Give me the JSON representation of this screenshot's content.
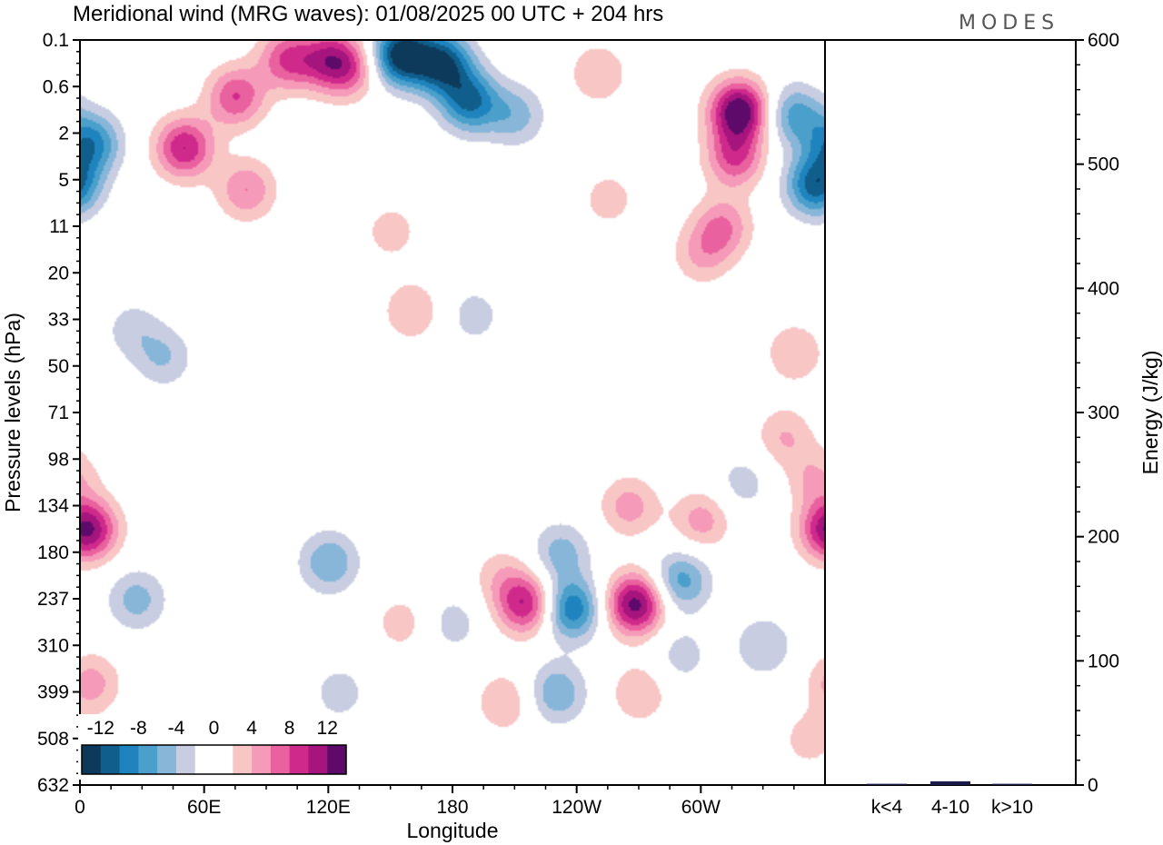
{
  "header": {
    "title": "Meridional wind (MRG waves):  01/08/2025  00 UTC  + 204 hrs",
    "brand": "MODES"
  },
  "chart_data": {
    "type": "heatmap",
    "title": "Meridional wind (MRG waves):  01/08/2025  00 UTC  + 204 hrs",
    "xlabel": "Longitude",
    "ylabel": "Pressure levels (hPa)",
    "x_ticks": [
      "0",
      "60E",
      "120E",
      "180",
      "120W",
      "60W"
    ],
    "x_tick_longitudes": [
      0,
      60,
      120,
      180,
      240,
      300
    ],
    "xlim": [
      0,
      360
    ],
    "y_ticks": [
      "0.1",
      "0.6",
      "2",
      "5",
      "11",
      "20",
      "33",
      "50",
      "71",
      "98",
      "134",
      "180",
      "237",
      "310",
      "399",
      "508",
      "632"
    ],
    "colorbar": {
      "labels": [
        "-12",
        "-8",
        "-4",
        "0",
        "4",
        "8",
        "12"
      ],
      "label_values": [
        -12,
        -8,
        -4,
        0,
        4,
        8,
        12
      ],
      "levels": [
        -14,
        -12,
        -10,
        -8,
        -6,
        -4,
        -2,
        0,
        2,
        4,
        6,
        8,
        10,
        12,
        14
      ],
      "colors": [
        "#0d3a5a",
        "#0f5e8c",
        "#1f84bd",
        "#4a9fcb",
        "#87b6d8",
        "#c8cde2",
        "#ffffff",
        "#ffffff",
        "#f9c6c6",
        "#f59ab8",
        "#e9619e",
        "#cf2a8b",
        "#a6157d",
        "#5e0a6b"
      ]
    },
    "blobs": [
      {
        "lon": 155,
        "level": 0.3,
        "value": -14
      },
      {
        "lon": 175,
        "level": 0.5,
        "value": -12
      },
      {
        "lon": 188,
        "level": 1.3,
        "value": -10
      },
      {
        "lon": 210,
        "level": 1.6,
        "value": -5
      },
      {
        "lon": 100,
        "level": 0.4,
        "value": 8
      },
      {
        "lon": 120,
        "level": 0.4,
        "value": 8
      },
      {
        "lon": 130,
        "level": 0.6,
        "value": 6
      },
      {
        "lon": 75,
        "level": 1.2,
        "value": 8
      },
      {
        "lon": 50,
        "level": 2.3,
        "value": 10
      },
      {
        "lon": 80,
        "level": 3.2,
        "value": 6
      },
      {
        "lon": 250,
        "level": 0.7,
        "value": 4
      },
      {
        "lon": 255,
        "level": 3.4,
        "value": 3
      },
      {
        "lon": 318,
        "level": 1.5,
        "value": 14
      },
      {
        "lon": 316,
        "level": 2.5,
        "value": 8
      },
      {
        "lon": 310,
        "level": 4.0,
        "value": 6
      },
      {
        "lon": 300,
        "level": 4.6,
        "value": 4
      },
      {
        "lon": 345,
        "level": 1.6,
        "value": -7
      },
      {
        "lon": 355,
        "level": 3.1,
        "value": -11
      },
      {
        "lon": 5,
        "level": 2.2,
        "value": -9
      },
      {
        "lon": 150,
        "level": 4.1,
        "value": 3
      },
      {
        "lon": 160,
        "level": 5.8,
        "value": 4
      },
      {
        "lon": 190,
        "level": 5.9,
        "value": -3
      },
      {
        "lon": 40,
        "level": 6.8,
        "value": -4
      },
      {
        "lon": 25,
        "level": 6.2,
        "value": -3
      },
      {
        "lon": 345,
        "level": 6.7,
        "value": 4
      },
      {
        "lon": 340,
        "level": 8.5,
        "value": 4
      },
      {
        "lon": 5,
        "level": 10.5,
        "value": 7
      },
      {
        "lon": 5,
        "level": 13.8,
        "value": 5
      },
      {
        "lon": 27,
        "level": 12.0,
        "value": -5
      },
      {
        "lon": 360,
        "level": 10.5,
        "value": 6
      },
      {
        "lon": 120,
        "level": 11.2,
        "value": -6
      },
      {
        "lon": 125,
        "level": 14.0,
        "value": -3
      },
      {
        "lon": 155,
        "level": 12.5,
        "value": 3
      },
      {
        "lon": 180,
        "level": 12.5,
        "value": -3
      },
      {
        "lon": 203,
        "level": 11.5,
        "value": 3
      },
      {
        "lon": 215,
        "level": 12.1,
        "value": 10
      },
      {
        "lon": 205,
        "level": 14.2,
        "value": 4
      },
      {
        "lon": 230,
        "level": 14.0,
        "value": -6
      },
      {
        "lon": 232,
        "level": 11.0,
        "value": -5
      },
      {
        "lon": 237,
        "level": 12.2,
        "value": -10
      },
      {
        "lon": 268,
        "level": 12.1,
        "value": 13
      },
      {
        "lon": 265,
        "level": 10.0,
        "value": 5
      },
      {
        "lon": 270,
        "level": 14.0,
        "value": 4
      },
      {
        "lon": 290,
        "level": 11.6,
        "value": -7
      },
      {
        "lon": 290,
        "level": 13.2,
        "value": -3
      },
      {
        "lon": 300,
        "level": 10.3,
        "value": 5
      },
      {
        "lon": 320,
        "level": 9.5,
        "value": -3
      },
      {
        "lon": 330,
        "level": 13.0,
        "value": -4
      },
      {
        "lon": 355,
        "level": 9.4,
        "value": 4
      },
      {
        "lon": 352,
        "level": 15.0,
        "value": 3
      },
      {
        "lon": 60,
        "level": 14.5,
        "value": -2
      }
    ],
    "energy_panel": {
      "ylabel": "Energy (J/kg)",
      "ylim": [
        0,
        600
      ],
      "y_ticks": [
        "0",
        "100",
        "200",
        "300",
        "400",
        "500",
        "600"
      ],
      "y_tick_values": [
        0,
        100,
        200,
        300,
        400,
        500,
        600
      ],
      "categories": [
        "k<4",
        "4-10",
        "k>10"
      ],
      "values": [
        1,
        3,
        1
      ],
      "bar_color": "#1a1a4a"
    }
  }
}
